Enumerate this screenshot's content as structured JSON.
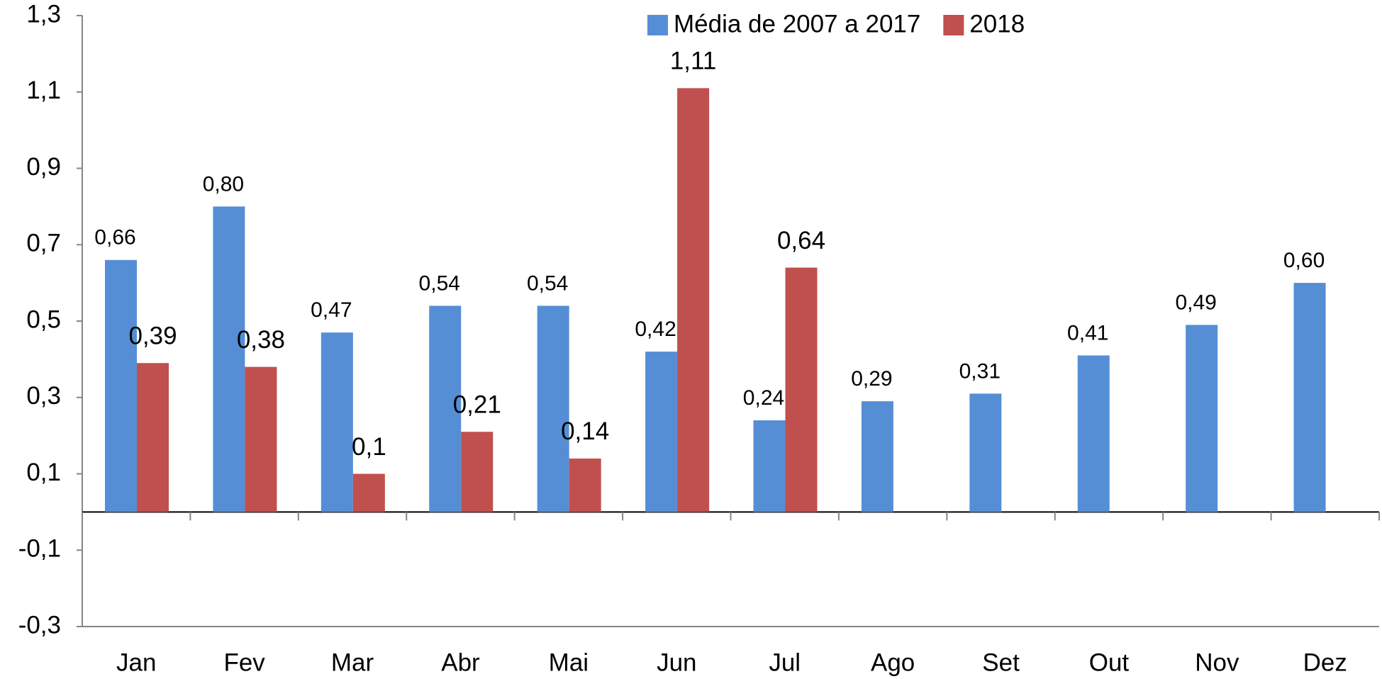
{
  "chart_data": {
    "type": "bar",
    "categories": [
      "Jan",
      "Fev",
      "Mar",
      "Abr",
      "Mai",
      "Jun",
      "Jul",
      "Ago",
      "Set",
      "Out",
      "Nov",
      "Dez"
    ],
    "series": [
      {
        "name": "Média de 2007 a 2017",
        "color": "#558ed5",
        "values": [
          0.66,
          0.8,
          0.47,
          0.54,
          0.54,
          0.42,
          0.24,
          0.29,
          0.31,
          0.41,
          0.49,
          0.6
        ],
        "value_labels": [
          "0,66",
          "0,80",
          "0,47",
          "0,54",
          "0,54",
          "0,42",
          "0,24",
          "0,29",
          "0,31",
          "0,41",
          "0,49",
          "0,60"
        ]
      },
      {
        "name": "2018",
        "color": "#c0504d",
        "values": [
          0.39,
          0.38,
          0.1,
          0.21,
          0.14,
          1.11,
          0.64,
          null,
          null,
          null,
          null,
          null
        ],
        "value_labels": [
          "0,39",
          "0,38",
          "0,1",
          "0,21",
          "0,14",
          "1,11",
          "0,64",
          null,
          null,
          null,
          null,
          null
        ]
      }
    ],
    "ylim": [
      -0.3,
      1.3
    ],
    "yticks": [
      {
        "value": -0.3,
        "label": "-0,3"
      },
      {
        "value": -0.1,
        "label": "-0,1"
      },
      {
        "value": 0.1,
        "label": "0,1"
      },
      {
        "value": 0.3,
        "label": "0,3"
      },
      {
        "value": 0.5,
        "label": "0,5"
      },
      {
        "value": 0.7,
        "label": "0,7"
      },
      {
        "value": 0.9,
        "label": "0,9"
      },
      {
        "value": 1.1,
        "label": "1,1"
      },
      {
        "value": 1.3,
        "label": "1,3"
      }
    ],
    "legend": "top"
  }
}
